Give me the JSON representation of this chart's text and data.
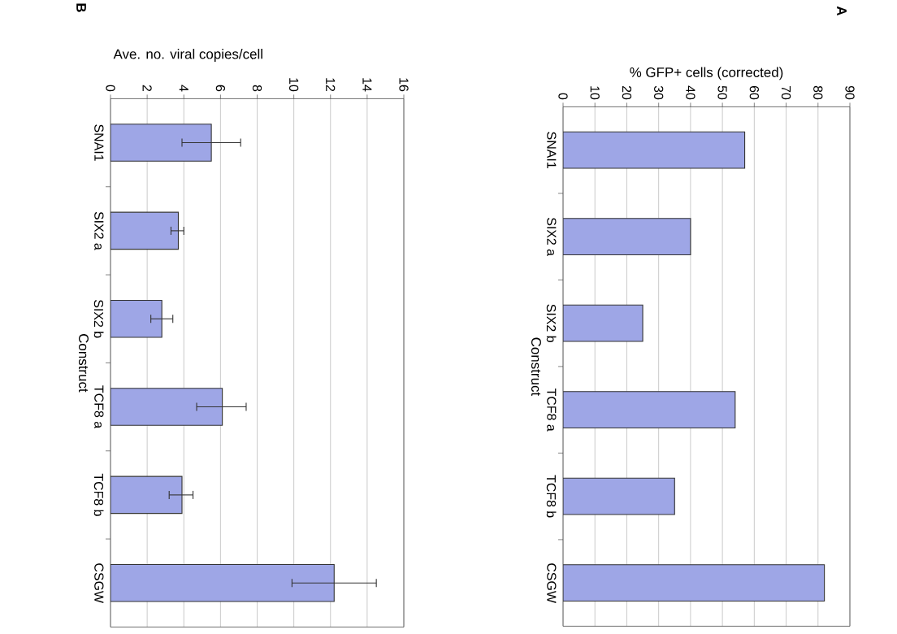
{
  "chart_data": [
    {
      "type": "bar",
      "orientation": "horizontal",
      "title": "A",
      "xlabel": "% GFP+ cells (corrected)",
      "ylabel": "Construct",
      "categories": [
        "SNAI1",
        "SIX2 a",
        "SIX2 b",
        "TCF8 a",
        "TCF8 b",
        "CSGW"
      ],
      "values": [
        57,
        40,
        25,
        54,
        35,
        82
      ],
      "color": "#9ea6e6",
      "xlim": [
        0,
        90
      ],
      "xticks": [
        0,
        10,
        20,
        30,
        40,
        50,
        60,
        70,
        80,
        90
      ],
      "grid": "x"
    },
    {
      "type": "bar",
      "orientation": "horizontal",
      "title": "B",
      "xlabel": "Ave. no. viral copies/cell",
      "ylabel": "Construct",
      "categories": [
        "SNAI1",
        "SIX2 a",
        "SIX2 b",
        "TCF8 a",
        "TCF8 b",
        "CSGW"
      ],
      "values": [
        5.5,
        3.7,
        2.8,
        6.1,
        3.9,
        12.2
      ],
      "errors": [
        [
          3.9,
          7.1
        ],
        [
          3.3,
          4.0
        ],
        [
          2.2,
          3.4
        ],
        [
          4.7,
          7.4
        ],
        [
          3.2,
          4.5
        ],
        [
          9.9,
          14.5
        ]
      ],
      "color": "#9ea6e6",
      "xlim": [
        0,
        16
      ],
      "xticks": [
        0,
        2,
        4,
        6,
        8,
        10,
        12,
        14,
        16
      ],
      "grid": "x"
    }
  ]
}
